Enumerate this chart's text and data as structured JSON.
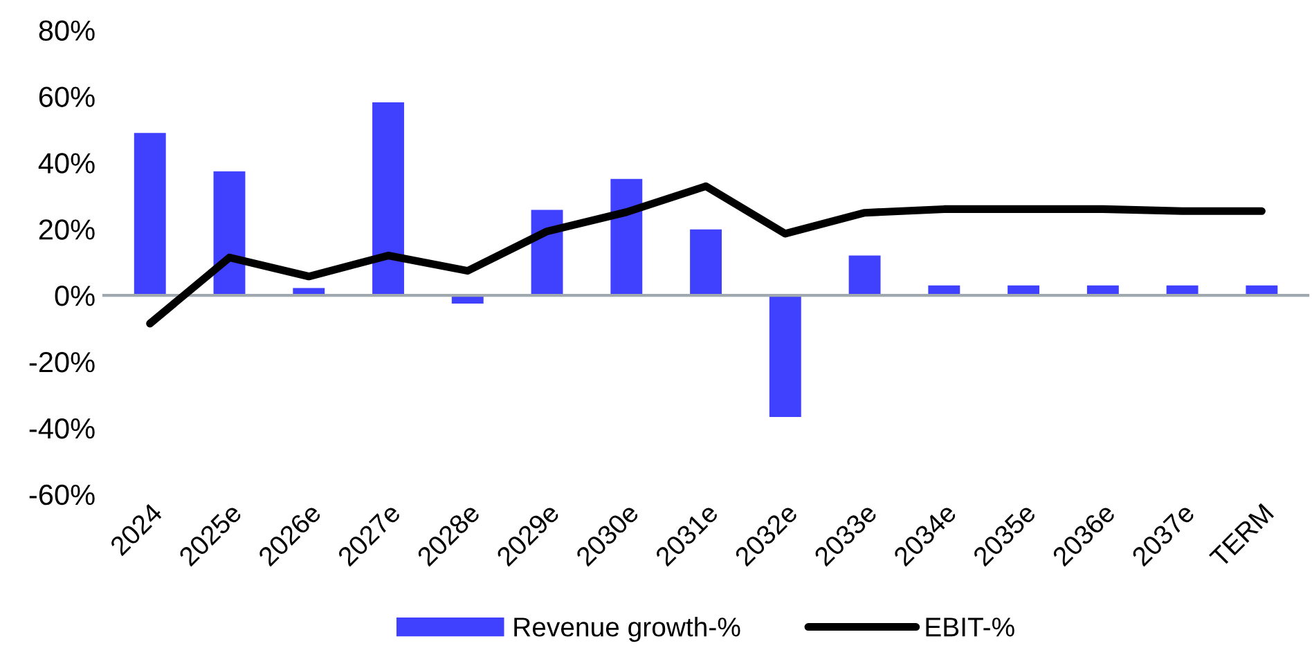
{
  "chart_data": {
    "type": "bar",
    "categories": [
      "2024",
      "2025e",
      "2026e",
      "2027e",
      "2028e",
      "2029e",
      "2030e",
      "2031e",
      "2032e",
      "2033e",
      "2034e",
      "2035e",
      "2036e",
      "2037e",
      "TERM"
    ],
    "series": [
      {
        "name": "Revenue growth-%",
        "color": "#4040ff",
        "values": [
          49,
          37.4,
          2.2,
          58.2,
          -2.5,
          25.8,
          35.1,
          19.9,
          -36.7,
          12,
          3,
          3,
          3,
          3,
          3
        ]
      },
      {
        "name": "EBIT-%",
        "type": "line",
        "color": "#000000",
        "values": [
          -8.5,
          11.4,
          5.7,
          12,
          7.4,
          19.3,
          25.1,
          32.9,
          18.6,
          24.9,
          26,
          26,
          26,
          25.4,
          25.4
        ]
      }
    ],
    "ylim": [
      -60,
      80
    ],
    "yticks": [
      {
        "value": -60,
        "label": "-60%"
      },
      {
        "value": -40,
        "label": "-40%"
      },
      {
        "value": -20,
        "label": "-20%"
      },
      {
        "value": 0,
        "label": "0%"
      },
      {
        "value": 20,
        "label": "20%"
      },
      {
        "value": 40,
        "label": "40%"
      },
      {
        "value": 60,
        "label": "60%"
      },
      {
        "value": 80,
        "label": "80%"
      }
    ],
    "ref_lines": [
      {
        "axis": "y",
        "value": 0,
        "color": "#a0a8b0"
      }
    ],
    "grid": false,
    "legend": "bottom"
  }
}
